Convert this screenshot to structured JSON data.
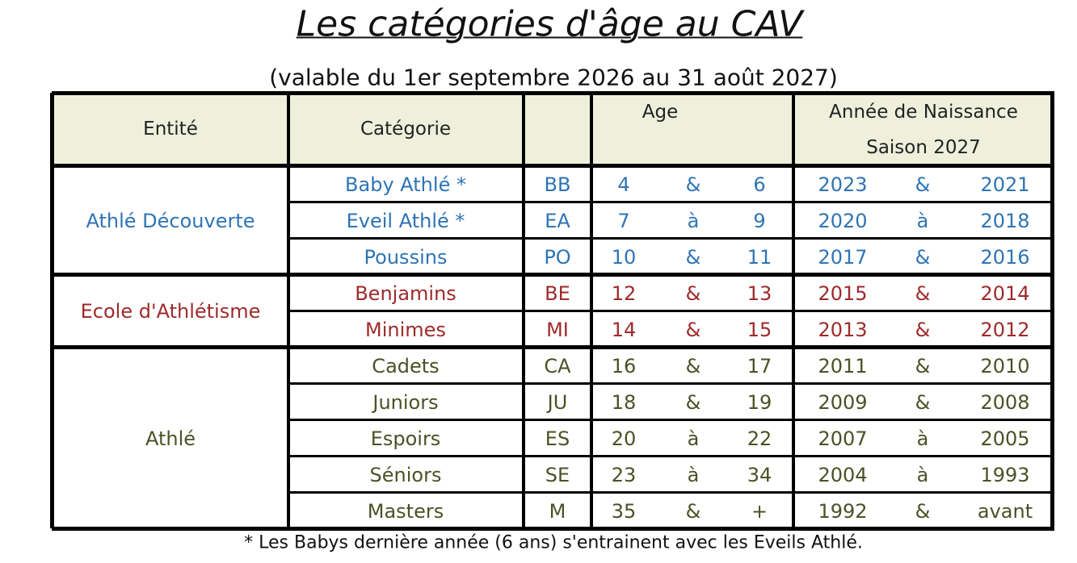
{
  "title": "Les catégories d'âge au CAV",
  "subtitle": "(valable du 1er septembre 2026 au 31 août 2027)",
  "table": {
    "headers": {
      "entity": "Entité",
      "category": "Catégorie",
      "age": "Age",
      "birth_year": "Année de Naissance",
      "season": "Saison 2027"
    },
    "groups": [
      {
        "entity": "Athlé Découverte",
        "color": "#2e74b5",
        "rows": [
          [
            "Baby Athlé *",
            "BB",
            4,
            "&",
            6,
            2023,
            "&",
            2021
          ],
          [
            "Eveil Athlé *",
            "EA",
            7,
            "à",
            9,
            2020,
            "à",
            2018
          ],
          [
            "Poussins",
            "PO",
            10,
            "&",
            11,
            2017,
            "&",
            2016
          ]
        ]
      },
      {
        "entity": "Ecole d'Athlétisme",
        "color": "#9e2a2b",
        "rows": [
          [
            "Benjamins",
            "BE",
            12,
            "&",
            13,
            2015,
            "&",
            2014
          ],
          [
            "Minimes",
            "MI",
            14,
            "&",
            15,
            2013,
            "&",
            2012
          ]
        ]
      },
      {
        "entity": "Athlé",
        "color": "#4a5225",
        "rows": [
          [
            "Cadets",
            "CA",
            16,
            "&",
            17,
            2011,
            "&",
            2010
          ],
          [
            "Juniors",
            "JU",
            18,
            "&",
            19,
            2009,
            "&",
            2008
          ],
          [
            "Espoirs",
            "ES",
            20,
            "à",
            22,
            2007,
            "à",
            2005
          ],
          [
            "Séniors",
            "SE",
            23,
            "à",
            34,
            2004,
            "à",
            1993
          ],
          [
            "Masters",
            "M",
            35,
            "&",
            "+",
            1992,
            "&",
            "avant"
          ]
        ]
      }
    ]
  },
  "footnote": "* Les Babys dernière année (6 ans) s'entrainent avec les Eveils Athlé."
}
